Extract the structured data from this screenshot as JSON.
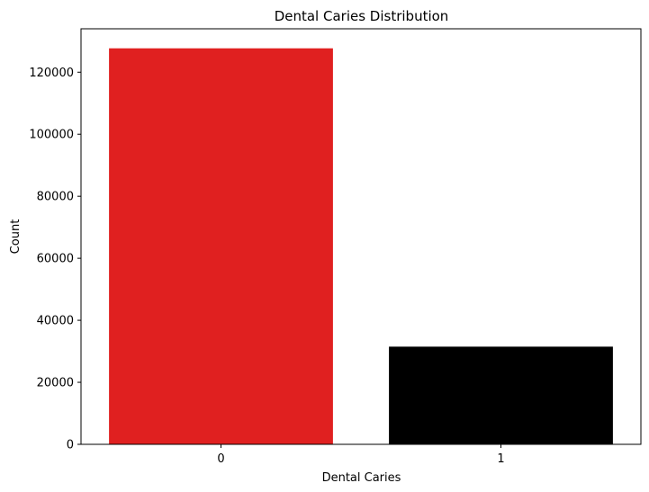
{
  "chart_data": {
    "type": "bar",
    "title": "Dental Caries Distribution",
    "xlabel": "Dental Caries",
    "ylabel": "Count",
    "categories": [
      "0",
      "1"
    ],
    "values": [
      127700,
      31500
    ],
    "colors": [
      "#e02020",
      "#000000"
    ],
    "ylim": [
      0,
      134000
    ],
    "yticks": [
      0,
      20000,
      40000,
      60000,
      80000,
      100000,
      120000
    ],
    "ytick_labels": [
      "0",
      "20000",
      "40000",
      "60000",
      "80000",
      "100000",
      "120000"
    ],
    "grid": false,
    "legend": false
  }
}
